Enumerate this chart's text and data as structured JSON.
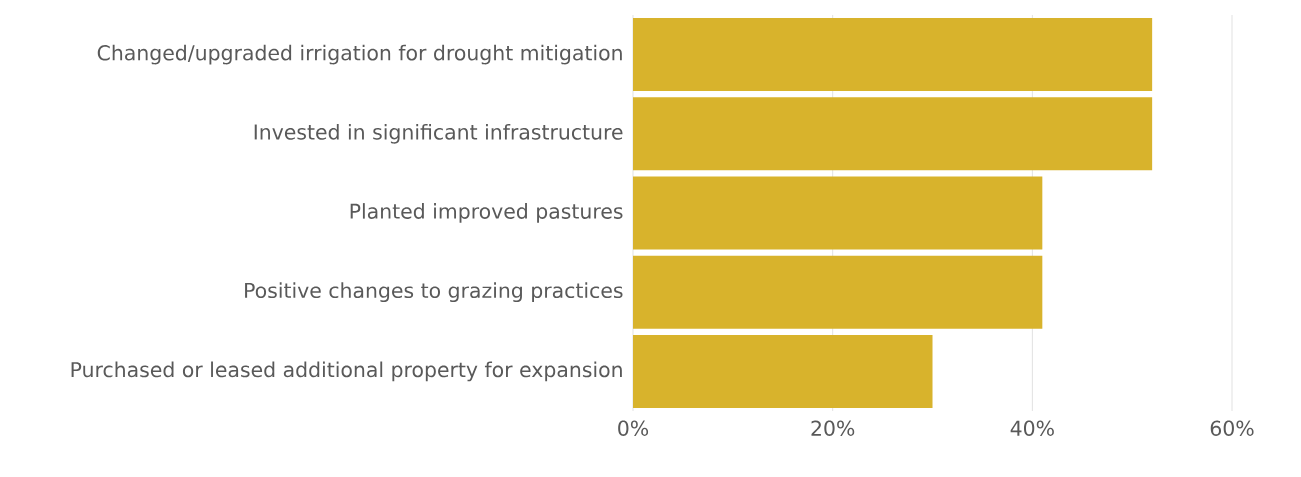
{
  "chart_data": {
    "type": "bar",
    "orientation": "horizontal",
    "categories": [
      "Changed/upgraded irrigation for drought mitigation",
      "Invested in significant infrastructure",
      "Planted improved pastures",
      "Positive changes to grazing practices",
      "Purchased or leased additional property for expansion"
    ],
    "values": [
      52,
      52,
      41,
      41,
      30
    ],
    "color": "#d8b32c",
    "xlim": [
      0,
      60
    ],
    "xticks": [
      {
        "value": 0,
        "label": "0%"
      },
      {
        "value": 20,
        "label": "20%"
      },
      {
        "value": 40,
        "label": "40%"
      },
      {
        "value": 60,
        "label": "60%"
      }
    ],
    "grid": "x"
  }
}
